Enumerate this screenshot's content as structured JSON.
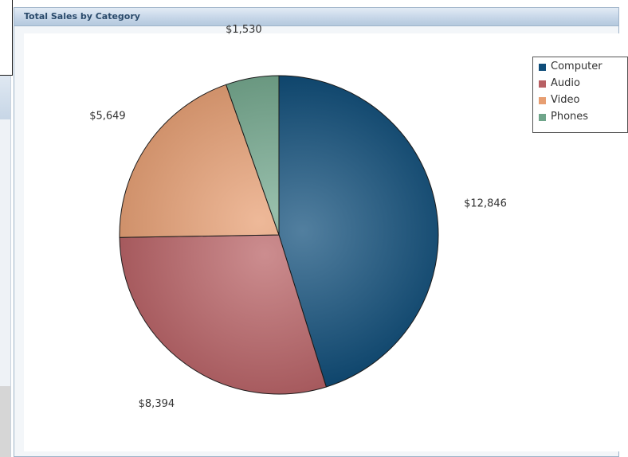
{
  "window": {
    "title": "Total Sales by Category"
  },
  "chart_data": {
    "type": "pie",
    "title": "Total Sales by Category",
    "categories": [
      "Computer",
      "Audio",
      "Video",
      "Phones"
    ],
    "values": [
      12846,
      8394,
      5649,
      1530
    ],
    "value_labels": [
      "$12,846",
      "$8,394",
      "$5,649",
      "$1,530"
    ],
    "colors": [
      "#0f4d7a",
      "#b86064",
      "#e79e72",
      "#6fa58a"
    ],
    "legend_position": "top-right",
    "start_angle": "12 o'clock",
    "direction": "clockwise"
  }
}
